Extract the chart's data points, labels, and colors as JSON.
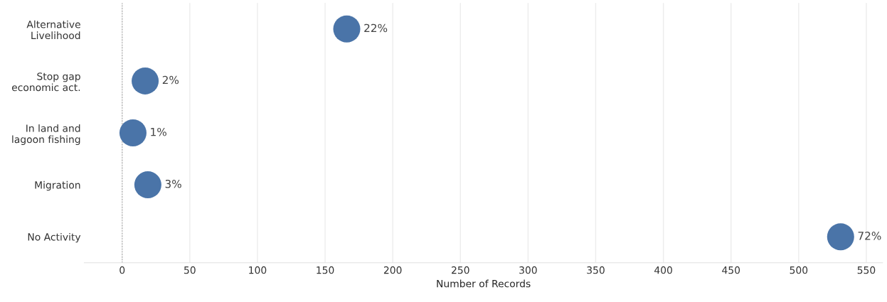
{
  "chart_data": {
    "type": "scatter",
    "orientation": "horizontal",
    "xlabel": "Number of Records",
    "categories": [
      "Alternative\nLivelihood",
      "Stop gap\neconomic act.",
      "In land and\nlagoon fishing",
      "Migration",
      "No Activity"
    ],
    "values": [
      166,
      17,
      8,
      19,
      531
    ],
    "annotations": [
      {
        "text": "22%",
        "x": 166,
        "y": "Alternative\nLivelihood"
      },
      {
        "text": "2%",
        "x": 17,
        "y": "Stop gap\neconomic act."
      },
      {
        "text": "1%",
        "x": 8,
        "y": "In land and\nlagoon fishing"
      },
      {
        "text": "3%",
        "x": 19,
        "y": "Migration"
      },
      {
        "text": "72%",
        "x": 531,
        "y": "No Activity"
      }
    ],
    "color": "#4a74a8",
    "marker": "circle",
    "xlim": [
      -28,
      562
    ],
    "xticks": [
      0,
      50,
      100,
      150,
      200,
      250,
      300,
      350,
      400,
      450,
      500,
      550
    ],
    "grid": "x",
    "legend": false,
    "ref_lines": [
      {
        "axis": "x",
        "value": 0,
        "line_style": "dotted",
        "color": "#aaaaaa"
      }
    ]
  }
}
